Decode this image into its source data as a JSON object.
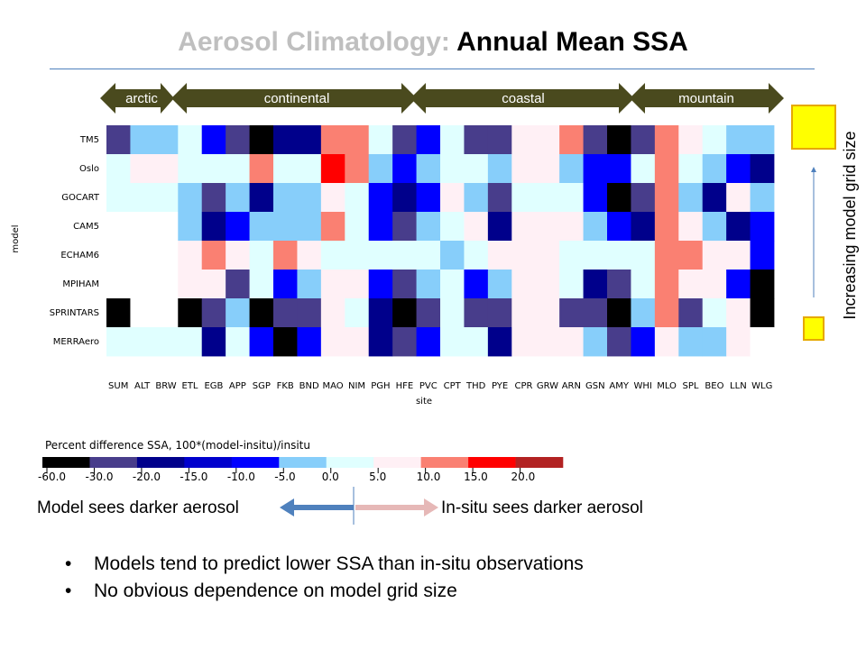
{
  "title": {
    "prefix": "Aerosol Climatology:",
    "main": "Annual Mean SSA"
  },
  "groups": [
    "arctic",
    "continental",
    "coastal",
    "mountain"
  ],
  "grid_size_label": "Increasing model grid size",
  "arrows": {
    "left": "Model sees darker aerosol",
    "right": "In-situ sees darker aerosol"
  },
  "bullets": [
    "Models tend to predict lower SSA than in-situ observations",
    "No obvious dependence on model grid size"
  ],
  "chart_data": {
    "type": "heatmap",
    "xlabel": "site",
    "ylabel": "model",
    "x": [
      "SUM",
      "ALT",
      "BRW",
      "ETL",
      "EGB",
      "APP",
      "SGP",
      "FKB",
      "BND",
      "MAO",
      "NIM",
      "PGH",
      "HFE",
      "PVC",
      "CPT",
      "THD",
      "PYE",
      "CPR",
      "GRW",
      "ARN",
      "GSN",
      "AMY",
      "WHI",
      "MLO",
      "SPL",
      "BEO",
      "LLN",
      "WLG"
    ],
    "y": [
      "TM5",
      "Oslo",
      "GOCART",
      "CAM5",
      "ECHAM6",
      "MPIHAM",
      "SPRINTARS",
      "MERRAero"
    ],
    "colorbar": {
      "title": "Percent difference SSA, 100*(model-insitu)/insitu",
      "ticks": [
        "-60.0",
        "-30.0",
        "-20.0",
        "-15.0",
        "-10.0",
        "-5.0",
        "0.0",
        "5.0",
        "10.0",
        "15.0",
        "20.0"
      ],
      "colors": [
        "#000000",
        "#483d8b",
        "#00008b",
        "#0000cd",
        "#0000ff",
        "#87cefa",
        "#e0ffff",
        "#fff0f5",
        "#fa8072",
        "#ff0000",
        "#b22222"
      ]
    },
    "class_colors": [
      "#000000",
      "#483d8b",
      "#00008b",
      "#0000cd",
      "#0000ff",
      "#87cefa",
      "#e0ffff",
      "#fff0f5",
      "#fa8072",
      "#ff0000",
      "#b22222",
      "#ffffff"
    ],
    "cells": [
      [
        1,
        5,
        5,
        6,
        4,
        1,
        0,
        2,
        2,
        8,
        8,
        6,
        1,
        4,
        6,
        1,
        1,
        7,
        7,
        8,
        1,
        0,
        1,
        8,
        7,
        6,
        5,
        5
      ],
      [
        6,
        7,
        7,
        6,
        6,
        6,
        8,
        6,
        6,
        9,
        8,
        5,
        4,
        5,
        6,
        6,
        5,
        7,
        7,
        5,
        4,
        4,
        6,
        8,
        6,
        5,
        4,
        2
      ],
      [
        6,
        6,
        6,
        5,
        1,
        5,
        2,
        5,
        5,
        7,
        6,
        4,
        2,
        4,
        7,
        5,
        1,
        6,
        6,
        6,
        4,
        0,
        1,
        8,
        5,
        2,
        7,
        5
      ],
      [
        11,
        11,
        11,
        5,
        2,
        4,
        5,
        5,
        5,
        8,
        6,
        4,
        1,
        5,
        6,
        7,
        2,
        7,
        7,
        7,
        5,
        4,
        2,
        8,
        7,
        5,
        2,
        4
      ],
      [
        11,
        11,
        11,
        7,
        8,
        7,
        6,
        8,
        7,
        6,
        6,
        6,
        6,
        6,
        5,
        6,
        7,
        7,
        7,
        6,
        6,
        6,
        6,
        8,
        8,
        7,
        7,
        4
      ],
      [
        11,
        11,
        11,
        7,
        7,
        1,
        6,
        4,
        5,
        7,
        7,
        4,
        1,
        5,
        6,
        4,
        5,
        7,
        7,
        6,
        2,
        1,
        6,
        8,
        7,
        7,
        4,
        0
      ],
      [
        0,
        11,
        11,
        0,
        1,
        5,
        0,
        1,
        1,
        7,
        6,
        2,
        0,
        1,
        6,
        1,
        1,
        7,
        7,
        1,
        1,
        0,
        5,
        8,
        1,
        6,
        7,
        0
      ],
      [
        6,
        6,
        6,
        6,
        2,
        6,
        4,
        0,
        4,
        7,
        7,
        2,
        1,
        4,
        6,
        6,
        2,
        7,
        7,
        7,
        5,
        1,
        4,
        7,
        5,
        5,
        7,
        11
      ]
    ]
  }
}
